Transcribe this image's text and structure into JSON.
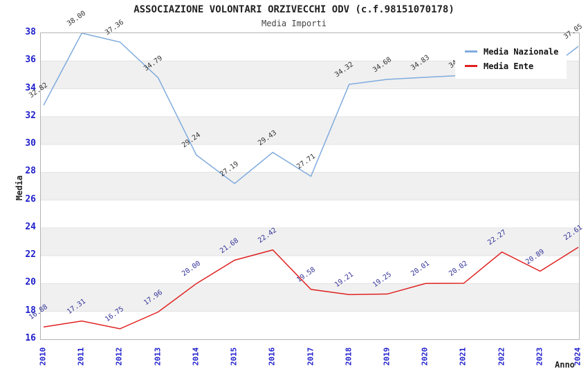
{
  "header": {
    "title": "ASSOCIAZIONE VOLONTARI ORZIVECCHI ODV (c.f.98151070178)",
    "subtitle": "Media Importi"
  },
  "legend": {
    "items": [
      {
        "label": "Media Nazionale",
        "color": "#7fabdd"
      },
      {
        "label": "Media Ente",
        "color": "#e02020"
      }
    ]
  },
  "axes": {
    "y_title": "Media",
    "x_title": "Anno",
    "y_ticks": [
      "38",
      "36",
      "34",
      "32",
      "30",
      "28",
      "26",
      "24",
      "22",
      "20",
      "18",
      "16"
    ],
    "x_ticks": [
      "2010",
      "2011",
      "2012",
      "2013",
      "2014",
      "2015",
      "2016",
      "2017",
      "2018",
      "2019",
      "2020",
      "2021",
      "2022",
      "2023",
      "2024"
    ]
  },
  "colors": {
    "tick_label": "#2020cc",
    "band_gray": "#f0f0f0",
    "grid_line": "#e3e3e3",
    "plot_border": "#b3b3b3"
  },
  "chart_data": {
    "type": "line",
    "title": "ASSOCIAZIONE VOLONTARI ORZIVECCHI ODV (c.f.98151070178)",
    "subtitle": "Media Importi",
    "xlabel": "Anno",
    "ylabel": "Media",
    "x": [
      "2010",
      "2011",
      "2012",
      "2013",
      "2014",
      "2015",
      "2016",
      "2017",
      "2018",
      "2019",
      "2020",
      "2021",
      "2022",
      "2023",
      "2024"
    ],
    "ylim": [
      16,
      38
    ],
    "y_tick_step": 2,
    "grid": "alternating-horizontal-bands",
    "legend_position": "top-right-overlapping-plot",
    "series": [
      {
        "name": "Media Nazionale",
        "color": "#7fabdd",
        "label_color": "#333333",
        "values": [
          32.82,
          38.0,
          37.36,
          34.79,
          29.24,
          27.19,
          29.43,
          27.71,
          34.32,
          34.68,
          34.83,
          34.97,
          34.92,
          34.95,
          37.05
        ],
        "labels_hidden_by_legend": [
          "2021",
          "2022",
          "2023"
        ]
      },
      {
        "name": "Media Ente",
        "color": "#e02020",
        "label_color": "#333399",
        "values": [
          16.88,
          17.31,
          16.75,
          17.96,
          20.0,
          21.68,
          22.42,
          19.58,
          19.21,
          19.25,
          20.01,
          20.02,
          22.27,
          20.89,
          22.61
        ]
      }
    ]
  }
}
